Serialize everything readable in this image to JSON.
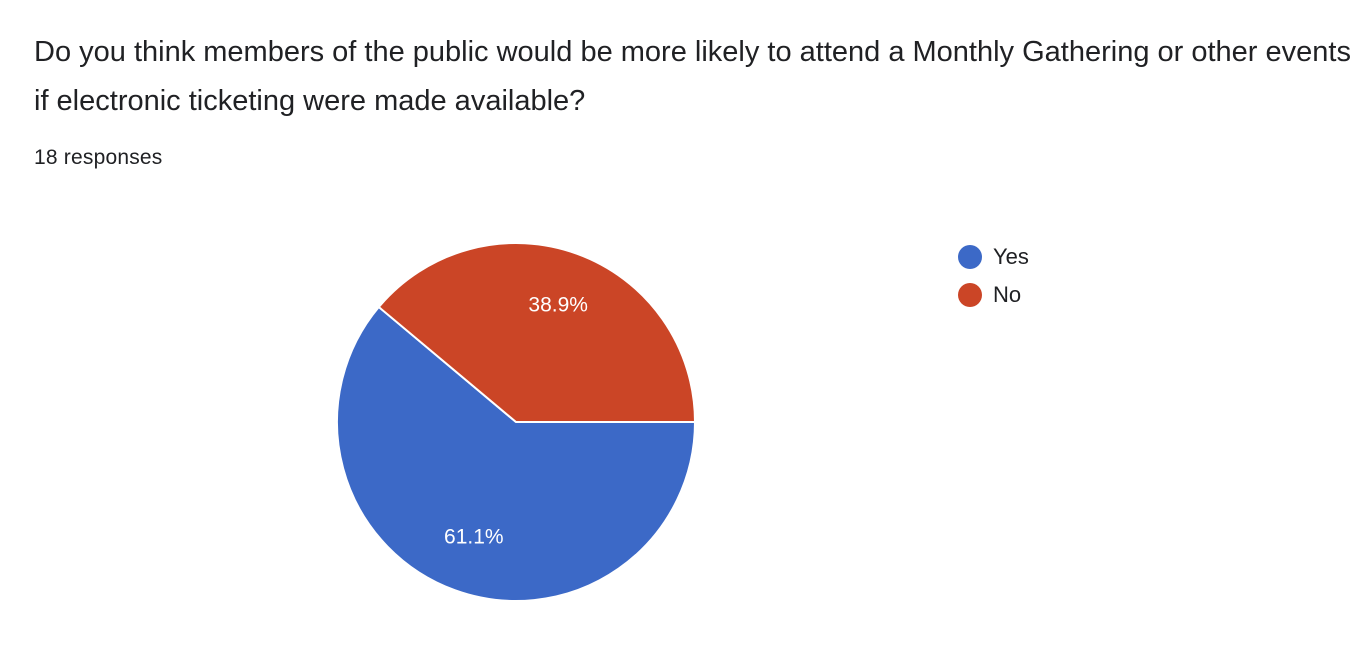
{
  "question": {
    "title": "Do you think members of the public would be more likely to attend a Monthly Gathering or other events if electronic ticketing were made available?",
    "responses": "18 responses"
  },
  "colors": {
    "yes": "#3c69c7",
    "no": "#cb4526",
    "slice_border": "#ffffff",
    "slice_label": "#ffffff"
  },
  "chart_data": {
    "type": "pie",
    "title": "",
    "categories": [
      "Yes",
      "No"
    ],
    "values": [
      61.1,
      38.9
    ],
    "labels": [
      "61.1%",
      "38.9%"
    ],
    "colors": [
      "#3c69c7",
      "#cb4526"
    ],
    "legend": "right",
    "start": "3 o'clock, clockwise"
  },
  "legend": {
    "items": [
      {
        "label": "Yes",
        "color": "#3c69c7"
      },
      {
        "label": "No",
        "color": "#cb4526"
      }
    ]
  }
}
